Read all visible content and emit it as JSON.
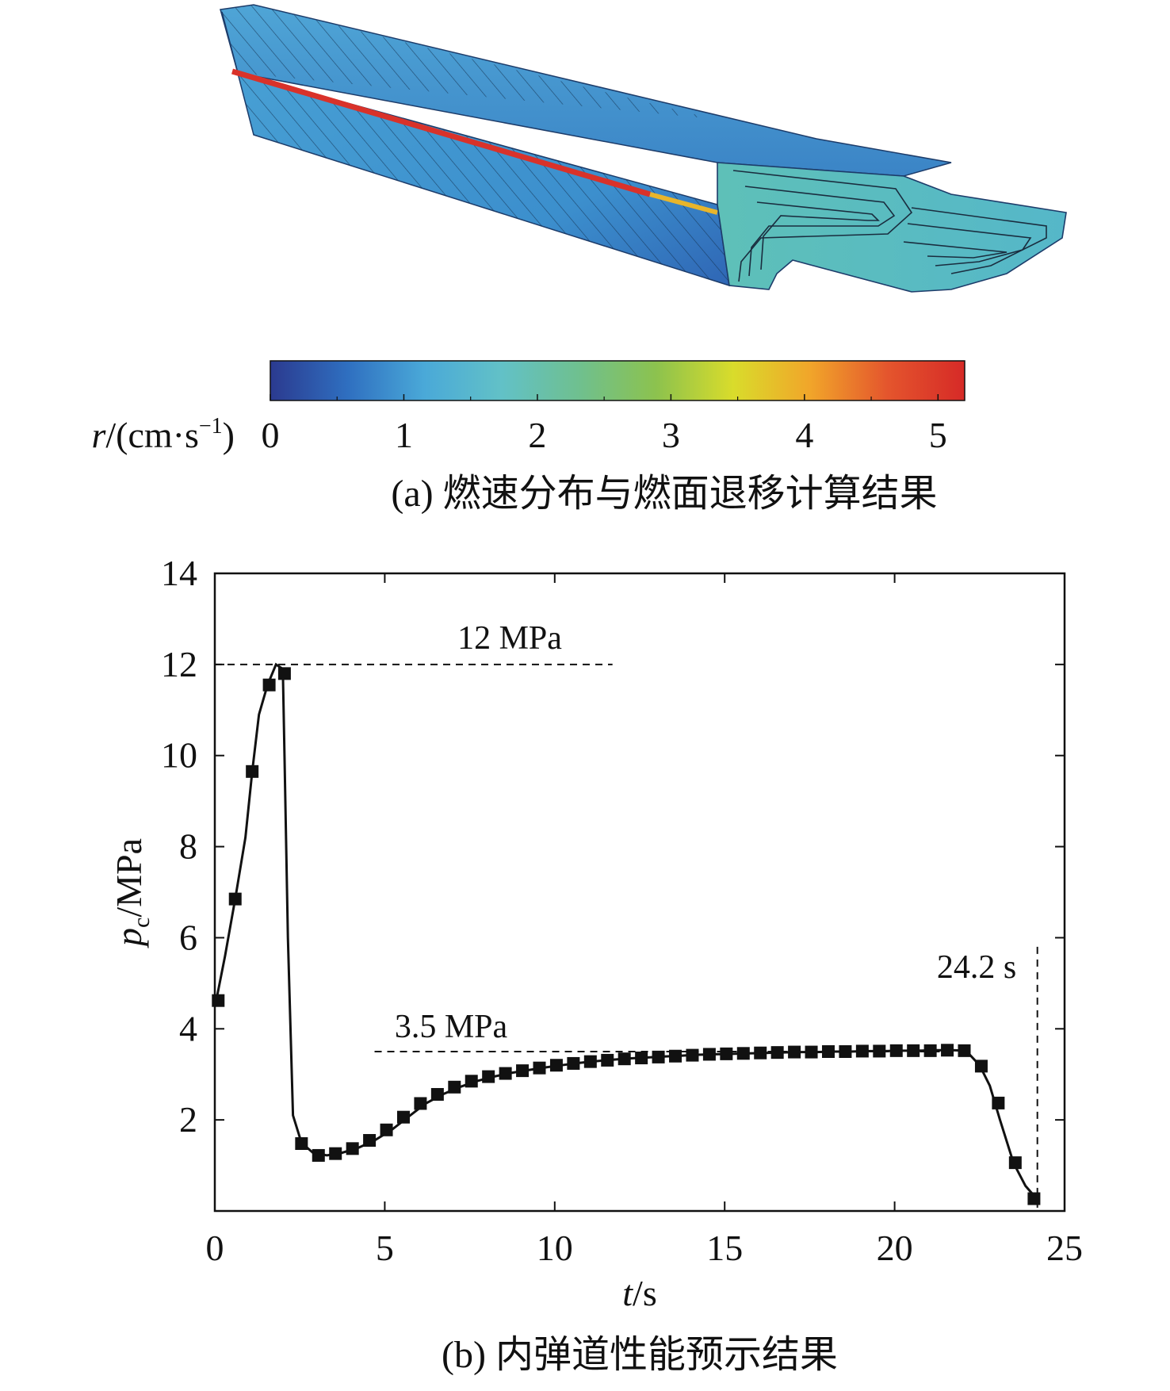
{
  "panel_a": {
    "colorbar": {
      "label_var": "r",
      "label_unit": "/(cm·s",
      "label_exp": "−1",
      "label_close": ")",
      "tick_labels": [
        "0",
        "1",
        "2",
        "3",
        "4",
        "5"
      ],
      "range": [
        0,
        5.2
      ],
      "colors": [
        "#2b3a8f",
        "#2f6fc0",
        "#4aa9d8",
        "#62c1c7",
        "#6fc08f",
        "#8cc24e",
        "#d9dc2b",
        "#f1a52a",
        "#e4552d",
        "#d62a27"
      ]
    },
    "caption": "(a) 燃速分布与燃面退移计算结果"
  },
  "panel_b": {
    "caption": "(b) 内弹道性能预示结果",
    "xlabel_var": "t",
    "xlabel_unit": "/s",
    "ylabel_var": "p",
    "ylabel_sub": "c",
    "ylabel_unit": "/MPa",
    "annotations": {
      "peak": "12 MPa",
      "plateau": "3.5 MPa",
      "burnout": "24.2 s"
    },
    "marker_color": "#111111"
  },
  "chart_data": {
    "type": "line",
    "xlim": [
      0,
      25
    ],
    "ylim": [
      0,
      14
    ],
    "x_ticks": [
      "0",
      "5",
      "10",
      "15",
      "20",
      "25"
    ],
    "y_ticks": [
      "2",
      "4",
      "6",
      "8",
      "10",
      "12",
      "14"
    ],
    "grid": false,
    "reference_lines": {
      "peak_pressure": 12,
      "plateau_pressure": 3.5,
      "burnout_time": 24.2
    },
    "line_points": [
      [
        0.05,
        4.65
      ],
      [
        0.3,
        5.6
      ],
      [
        0.6,
        6.85
      ],
      [
        0.9,
        8.2
      ],
      [
        1.1,
        9.65
      ],
      [
        1.3,
        10.9
      ],
      [
        1.55,
        11.55
      ],
      [
        1.8,
        12.0
      ],
      [
        2.0,
        11.9
      ],
      [
        2.05,
        10.0
      ],
      [
        2.15,
        6.0
      ],
      [
        2.3,
        2.1
      ],
      [
        2.55,
        1.5
      ],
      [
        2.9,
        1.27
      ],
      [
        3.3,
        1.22
      ],
      [
        3.7,
        1.27
      ],
      [
        4.2,
        1.38
      ],
      [
        4.7,
        1.55
      ],
      [
        5.2,
        1.78
      ],
      [
        5.7,
        2.07
      ],
      [
        6.2,
        2.36
      ],
      [
        6.7,
        2.56
      ],
      [
        7.2,
        2.72
      ],
      [
        7.7,
        2.85
      ],
      [
        8.2,
        2.95
      ],
      [
        8.7,
        3.03
      ],
      [
        9.2,
        3.09
      ],
      [
        9.7,
        3.15
      ],
      [
        10.2,
        3.2
      ],
      [
        10.7,
        3.25
      ],
      [
        11.2,
        3.29
      ],
      [
        11.7,
        3.32
      ],
      [
        12.2,
        3.35
      ],
      [
        12.7,
        3.37
      ],
      [
        13.2,
        3.39
      ],
      [
        13.7,
        3.41
      ],
      [
        14.2,
        3.43
      ],
      [
        14.7,
        3.44
      ],
      [
        15.2,
        3.45
      ],
      [
        15.7,
        3.46
      ],
      [
        16.2,
        3.47
      ],
      [
        16.7,
        3.48
      ],
      [
        17.2,
        3.49
      ],
      [
        17.7,
        3.49
      ],
      [
        18.2,
        3.5
      ],
      [
        18.7,
        3.5
      ],
      [
        19.2,
        3.51
      ],
      [
        19.7,
        3.51
      ],
      [
        20.2,
        3.52
      ],
      [
        20.7,
        3.52
      ],
      [
        21.2,
        3.53
      ],
      [
        21.7,
        3.53
      ],
      [
        22.1,
        3.52
      ],
      [
        22.5,
        3.2
      ],
      [
        22.8,
        2.75
      ],
      [
        23.1,
        2.0
      ],
      [
        23.5,
        1.05
      ],
      [
        23.85,
        0.55
      ],
      [
        24.2,
        0.25
      ]
    ],
    "marker_points": [
      [
        0.1,
        4.62
      ],
      [
        0.6,
        6.85
      ],
      [
        1.1,
        9.65
      ],
      [
        1.6,
        11.55
      ],
      [
        2.05,
        11.8
      ],
      [
        2.55,
        1.48
      ],
      [
        3.05,
        1.22
      ],
      [
        3.55,
        1.26
      ],
      [
        4.05,
        1.37
      ],
      [
        4.55,
        1.55
      ],
      [
        5.05,
        1.78
      ],
      [
        5.55,
        2.06
      ],
      [
        6.05,
        2.36
      ],
      [
        6.55,
        2.56
      ],
      [
        7.05,
        2.72
      ],
      [
        7.55,
        2.85
      ],
      [
        8.05,
        2.95
      ],
      [
        8.55,
        3.02
      ],
      [
        9.05,
        3.08
      ],
      [
        9.55,
        3.14
      ],
      [
        10.05,
        3.2
      ],
      [
        10.55,
        3.24
      ],
      [
        11.05,
        3.28
      ],
      [
        11.55,
        3.31
      ],
      [
        12.05,
        3.34
      ],
      [
        12.55,
        3.36
      ],
      [
        13.05,
        3.38
      ],
      [
        13.55,
        3.4
      ],
      [
        14.05,
        3.42
      ],
      [
        14.55,
        3.44
      ],
      [
        15.05,
        3.45
      ],
      [
        15.55,
        3.46
      ],
      [
        16.05,
        3.47
      ],
      [
        16.55,
        3.48
      ],
      [
        17.05,
        3.49
      ],
      [
        17.55,
        3.49
      ],
      [
        18.05,
        3.5
      ],
      [
        18.55,
        3.5
      ],
      [
        19.05,
        3.51
      ],
      [
        19.55,
        3.51
      ],
      [
        20.05,
        3.52
      ],
      [
        20.55,
        3.52
      ],
      [
        21.05,
        3.52
      ],
      [
        21.55,
        3.53
      ],
      [
        22.05,
        3.52
      ],
      [
        22.55,
        3.18
      ],
      [
        23.05,
        2.37
      ],
      [
        23.55,
        1.06
      ],
      [
        24.1,
        0.27
      ]
    ]
  }
}
